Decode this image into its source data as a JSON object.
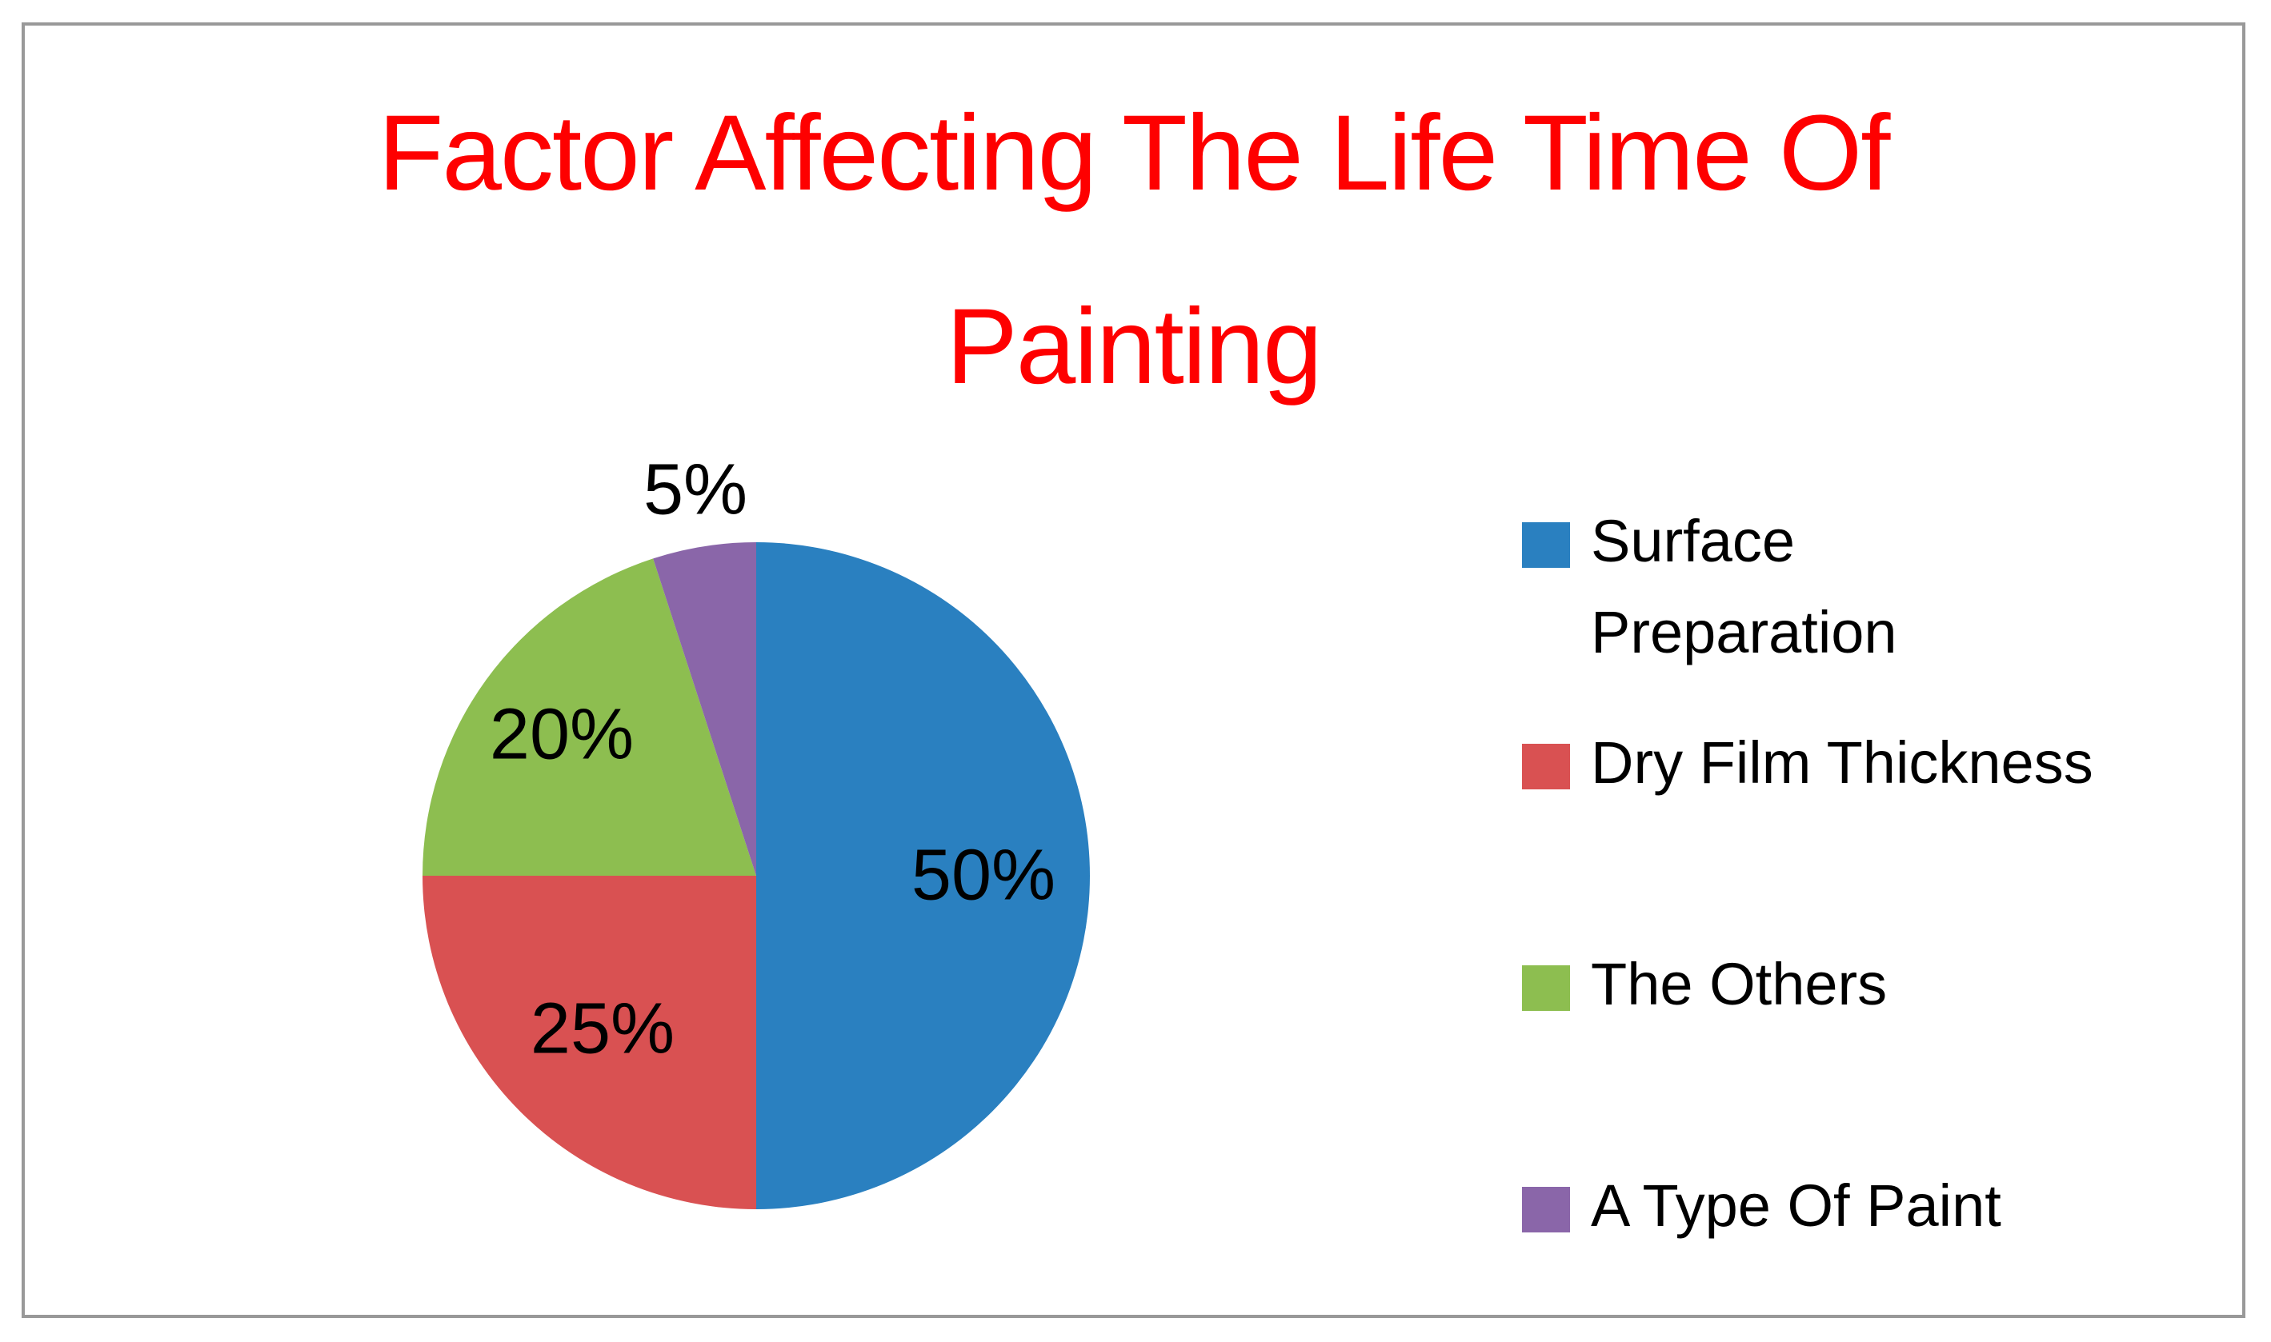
{
  "page": {
    "background": "#FFFFFF",
    "border_color": "#999999"
  },
  "title": {
    "line1": "Factor Affecting The Life Time Of",
    "line2": "Painting",
    "color": "#FE0000"
  },
  "chart_data": {
    "type": "pie",
    "title": "Factor Affecting The Life Time Of Painting",
    "start_angle_deg": 0,
    "direction": "clockwise",
    "legend_position": "right",
    "data_label_color": "#000000",
    "series": [
      {
        "name": "Surface Preparation",
        "value": 50,
        "label": "50%",
        "color": "#2A80C0",
        "label_placement": "inside",
        "legend_lines": [
          "Surface",
          "Preparation"
        ]
      },
      {
        "name": "Dry Film Thickness",
        "value": 25,
        "label": "25%",
        "color": "#D95152",
        "label_placement": "inside",
        "legend_lines": [
          "Dry Film Thickness"
        ]
      },
      {
        "name": "The Others",
        "value": 20,
        "label": "20%",
        "color": "#8DBE50",
        "label_placement": "inside",
        "legend_lines": [
          "The Others"
        ]
      },
      {
        "name": "A Type Of Paint",
        "value": 5,
        "label": "5%",
        "color": "#8A66A9",
        "label_placement": "outside",
        "legend_lines": [
          "A Type Of Paint"
        ]
      }
    ]
  }
}
